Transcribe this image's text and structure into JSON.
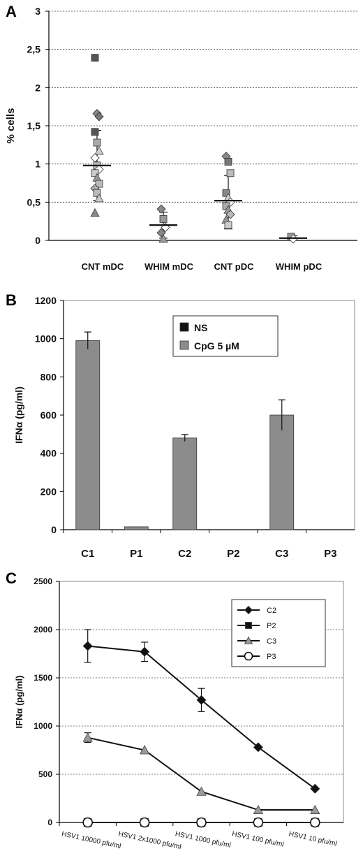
{
  "panels": {
    "a": {
      "letter": "A"
    },
    "b": {
      "letter": "B"
    },
    "c": {
      "letter": "C"
    }
  },
  "chart_data": [
    {
      "id": "A",
      "type": "scatter",
      "ylabel": "% cells",
      "ylim": [
        0,
        3
      ],
      "yticks": [
        "0",
        "0,5",
        "1",
        "1,5",
        "2",
        "2,5",
        "3"
      ],
      "categories": [
        "CNT mDC",
        "WHIM mDC",
        "CNT pDC",
        "WHIM pDC"
      ],
      "grid": true,
      "groups": [
        {
          "category": "CNT mDC",
          "mean": 0.98,
          "sd_low": 0.52,
          "sd_high": 1.44,
          "points": [
            {
              "v": 2.39,
              "m": "square",
              "c": "#555"
            },
            {
              "v": 1.66,
              "m": "diamond",
              "c": "#888"
            },
            {
              "v": 1.62,
              "m": "diamond",
              "c": "#777"
            },
            {
              "v": 1.42,
              "m": "square",
              "c": "#555"
            },
            {
              "v": 1.28,
              "m": "square",
              "c": "#aaa"
            },
            {
              "v": 1.17,
              "m": "triangle",
              "c": "#ccc"
            },
            {
              "v": 1.08,
              "m": "diamond-open",
              "c": "#fff"
            },
            {
              "v": 0.98,
              "m": "square",
              "c": "#bbb"
            },
            {
              "v": 0.93,
              "m": "diamond-open",
              "c": "#fff"
            },
            {
              "v": 0.88,
              "m": "square",
              "c": "#ccc"
            },
            {
              "v": 0.82,
              "m": "triangle",
              "c": "#999"
            },
            {
              "v": 0.74,
              "m": "square",
              "c": "#bbb"
            },
            {
              "v": 0.68,
              "m": "diamond",
              "c": "#aaa"
            },
            {
              "v": 0.62,
              "m": "square",
              "c": "#bbb"
            },
            {
              "v": 0.55,
              "m": "triangle",
              "c": "#ccc"
            },
            {
              "v": 0.36,
              "m": "triangle",
              "c": "#888"
            }
          ]
        },
        {
          "category": "WHIM mDC",
          "mean": 0.2,
          "sd_low": 0.03,
          "sd_high": 0.37,
          "points": [
            {
              "v": 0.41,
              "m": "diamond",
              "c": "#888"
            },
            {
              "v": 0.28,
              "m": "square",
              "c": "#999"
            },
            {
              "v": 0.17,
              "m": "diamond-open",
              "c": "#fff"
            },
            {
              "v": 0.1,
              "m": "diamond",
              "c": "#888"
            },
            {
              "v": 0.02,
              "m": "triangle",
              "c": "#999"
            }
          ]
        },
        {
          "category": "CNT pDC",
          "mean": 0.52,
          "sd_low": 0.15,
          "sd_high": 0.85,
          "points": [
            {
              "v": 1.1,
              "m": "diamond",
              "c": "#888"
            },
            {
              "v": 1.03,
              "m": "square",
              "c": "#777"
            },
            {
              "v": 0.88,
              "m": "square",
              "c": "#bbb"
            },
            {
              "v": 0.62,
              "m": "square",
              "c": "#888"
            },
            {
              "v": 0.56,
              "m": "triangle",
              "c": "#ccc"
            },
            {
              "v": 0.5,
              "m": "diamond-open",
              "c": "#fff"
            },
            {
              "v": 0.45,
              "m": "square",
              "c": "#aaa"
            },
            {
              "v": 0.4,
              "m": "triangle",
              "c": "#999"
            },
            {
              "v": 0.34,
              "m": "diamond",
              "c": "#bbb"
            },
            {
              "v": 0.27,
              "m": "triangle",
              "c": "#999"
            },
            {
              "v": 0.2,
              "m": "square",
              "c": "#ccc"
            }
          ]
        },
        {
          "category": "WHIM pDC",
          "mean": 0.03,
          "sd_low": 0.0,
          "sd_high": 0.06,
          "points": [
            {
              "v": 0.05,
              "m": "square",
              "c": "#999"
            },
            {
              "v": 0.02,
              "m": "diamond-open",
              "c": "#fff"
            }
          ]
        }
      ]
    },
    {
      "id": "B",
      "type": "bar",
      "ylabel": "IFNα (pg/ml)",
      "ylim": [
        0,
        1200
      ],
      "yticks": [
        "0",
        "200",
        "400",
        "600",
        "800",
        "1000",
        "1200"
      ],
      "categories": [
        "C1",
        "P1",
        "C2",
        "P2",
        "C3",
        "P3"
      ],
      "grid": false,
      "legend_position": "top-right",
      "series": [
        {
          "name": "NS",
          "color": "#111111",
          "values": [
            0,
            0,
            0,
            0,
            0,
            0
          ],
          "errors": [
            0,
            0,
            0,
            0,
            0,
            0
          ]
        },
        {
          "name": "CpG 5 µM",
          "color": "#8c8c8c",
          "values": [
            990,
            15,
            480,
            0,
            600,
            0
          ],
          "errors": [
            45,
            0,
            18,
            0,
            80,
            0
          ]
        }
      ]
    },
    {
      "id": "C",
      "type": "line",
      "ylabel": "IFNα (pg/ml)",
      "ylim": [
        0,
        2500
      ],
      "yticks": [
        "0",
        "500",
        "1000",
        "1500",
        "2000",
        "2500"
      ],
      "categories": [
        "HSV1  10000 pfu/ml",
        "HSV1  2x1000 pfu/ml",
        "HSV1  1000 pfu/ml",
        "HSV1  100 pfu/ml",
        "HSV1  10 pfu/ml"
      ],
      "grid": true,
      "legend_position": "top-right",
      "series": [
        {
          "name": "C2",
          "marker": "diamond",
          "color": "#111111",
          "values": [
            1830,
            1770,
            1270,
            780,
            350
          ],
          "errors": [
            170,
            100,
            120,
            0,
            0
          ]
        },
        {
          "name": "P2",
          "marker": "square",
          "color": "#111111",
          "values": [
            0,
            0,
            0,
            0,
            0
          ],
          "errors": [
            0,
            0,
            0,
            0,
            0
          ]
        },
        {
          "name": "C3",
          "marker": "triangle",
          "color": "#999999",
          "values": [
            880,
            750,
            320,
            130,
            130
          ],
          "errors": [
            50,
            0,
            0,
            0,
            0
          ]
        },
        {
          "name": "P3",
          "marker": "circle-open",
          "color": "#ffffff",
          "values": [
            0,
            0,
            0,
            0,
            0
          ],
          "errors": [
            0,
            0,
            0,
            0,
            0
          ]
        }
      ]
    }
  ]
}
